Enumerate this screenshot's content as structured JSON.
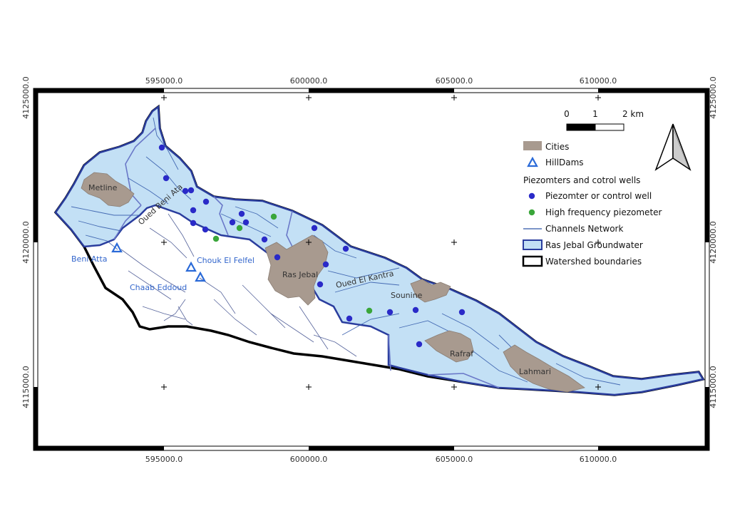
{
  "map": {
    "grid": {
      "x_labels": [
        "595000.0",
        "600000.0",
        "605000.0",
        "610000.0"
      ],
      "y_labels": [
        "4125000.0",
        "4120000.0",
        "4115000.0"
      ]
    },
    "scale_bar": {
      "labels": [
        "0",
        "1",
        "2 km"
      ]
    },
    "north_arrow": "north-arrow-icon",
    "places": {
      "metline": "Metline",
      "ras_jebal": "Ras Jebal",
      "sounine": "Sounine",
      "rafraf": "Rafraf",
      "lahmari": "Lahmari",
      "beni_atta": "Beni Atta",
      "chouk": "Chouk El Felfel",
      "chaab": "Chaab Eddoud",
      "oued_beni_ata": "Oued Beni Ata",
      "oued_el_kantra": "Oued El Kantra"
    },
    "legend": {
      "cities": "Cities",
      "hilldams": "HillDams",
      "piezo_header": "Piezomters and cotrol wells",
      "piezo": "Piezomter or control well",
      "hf_piezo": "High frequency piezometer",
      "channels": "Channels Network",
      "groundwater": "Ras Jebal Groundwater",
      "watershed": "Watershed boundaries"
    },
    "colors": {
      "groundwater_fill": "#c3e0f5",
      "groundwater_border": "#2a3d9e",
      "city": "#a89a8f",
      "piezometer": "#2a2ac8",
      "hf_piezometer": "#3aa63a",
      "channel": "#2f56a8",
      "hilldam": "#2a6ad8",
      "watershed": "#000000"
    }
  }
}
